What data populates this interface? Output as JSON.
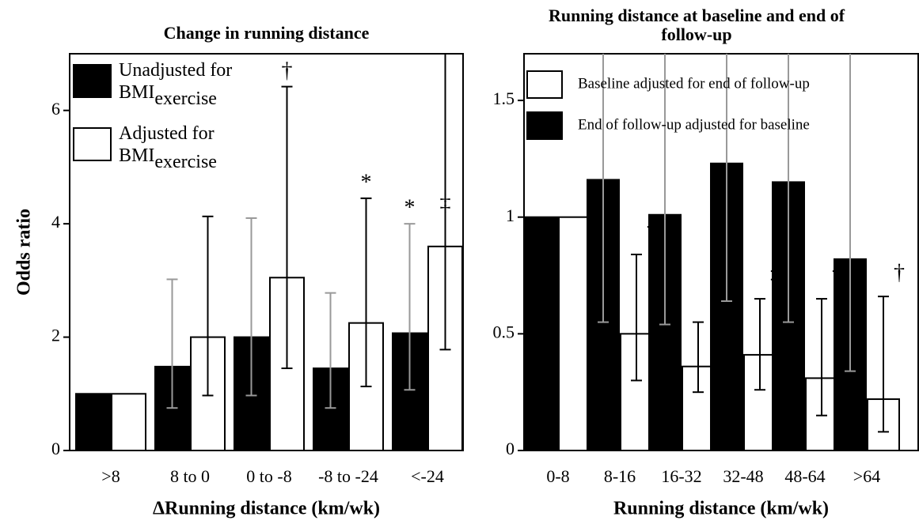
{
  "chart_data": [
    {
      "type": "bar",
      "title": "Change in running distance",
      "xlabel": "ΔRunning distance (km/wk)",
      "ylabel": "Odds ratio",
      "categories": [
        ">8",
        "8 to 0",
        "0 to -8",
        "-8 to -24",
        "<-24"
      ],
      "series": [
        {
          "name": "Unadjusted for BMI",
          "name_subscript": "exercise",
          "color": "#000000",
          "error_color": "#999999",
          "values": [
            1.0,
            1.48,
            2.0,
            1.45,
            2.07
          ],
          "error_lower": [
            null,
            0.75,
            0.97,
            0.75,
            1.07
          ],
          "error_upper": [
            null,
            3.02,
            4.1,
            2.78,
            4.0
          ],
          "markers": [
            null,
            null,
            null,
            null,
            "*"
          ]
        },
        {
          "name": "Adjusted for BMI",
          "name_subscript": "exercise",
          "color": "#ffffff",
          "error_color": "#000000",
          "values": [
            1.0,
            2.0,
            3.05,
            2.25,
            3.6
          ],
          "error_lower": [
            null,
            0.97,
            1.45,
            1.13,
            1.78
          ],
          "error_upper": [
            null,
            4.13,
            6.42,
            4.45,
            7.0
          ],
          "markers": [
            null,
            null,
            "†",
            "*",
            "‡"
          ]
        }
      ],
      "ylim": [
        0,
        7
      ],
      "yticks": [
        0,
        2,
        4,
        6
      ],
      "legend": "upper left",
      "marker_position": "above"
    },
    {
      "type": "bar",
      "title": "Running distance at baseline and end of follow-up",
      "xlabel": "Running distance (km/wk)",
      "categories": [
        "0-8",
        "8-16",
        "16-32",
        "32-48",
        "48-64",
        ">64"
      ],
      "series": [
        {
          "name": "End of follow-up adjusted for baseline",
          "color": "#000000",
          "error_color": "#999999",
          "values": [
            1.0,
            1.16,
            1.01,
            1.23,
            1.15,
            0.82
          ],
          "error_lower": [
            null,
            0.55,
            0.54,
            0.64,
            0.55,
            0.34
          ],
          "error_upper": [
            null,
            1.7,
            1.7,
            1.7,
            1.7,
            1.7
          ],
          "markers": [
            null,
            null,
            null,
            null,
            null,
            null
          ]
        },
        {
          "name": "Baseline adjusted for end of follow-up",
          "color": "#ffffff",
          "error_color": "#000000",
          "values": [
            1.0,
            0.5,
            0.36,
            0.41,
            0.31,
            0.22
          ],
          "error_lower": [
            null,
            0.3,
            0.25,
            0.26,
            0.15,
            0.08
          ],
          "error_upper": [
            null,
            0.84,
            0.55,
            0.65,
            0.65,
            0.66
          ],
          "markers": [
            null,
            "†",
            "§",
            "‡",
            "†",
            "†"
          ]
        }
      ],
      "ylim": [
        0,
        1.7
      ],
      "yticks": [
        0,
        0.5,
        1,
        1.5
      ],
      "legend": "upper left",
      "legend_reversed": true,
      "marker_position": "right"
    }
  ]
}
